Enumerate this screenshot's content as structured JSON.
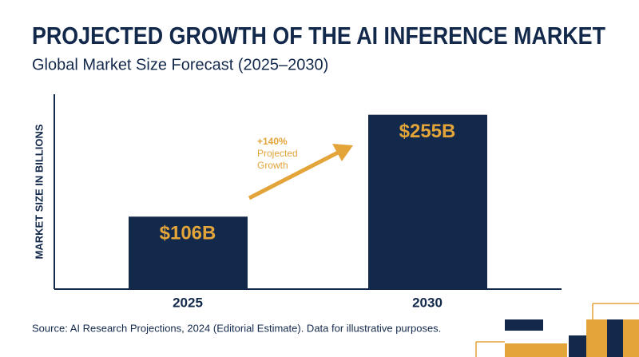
{
  "chart_data": {
    "type": "bar",
    "title": "PROJECTED GROWTH OF THE AI INFERENCE MARKET",
    "subtitle": "Global Market Size Forecast (2025–2030)",
    "y_label": "MARKET SIZE IN BILLIONS",
    "categories": [
      "2025",
      "2030"
    ],
    "values": [
      106,
      255
    ],
    "value_labels": [
      "$106B",
      "$255B"
    ],
    "color": "#13294b",
    "label_color": "#e3a43a",
    "ylim": [
      0,
      285
    ],
    "annotation": {
      "change": "+140%",
      "text": "Projected Growth"
    },
    "source": "Source: AI Research Projections, 2024 (Editorial Estimate). Data for illustrative purposes."
  }
}
